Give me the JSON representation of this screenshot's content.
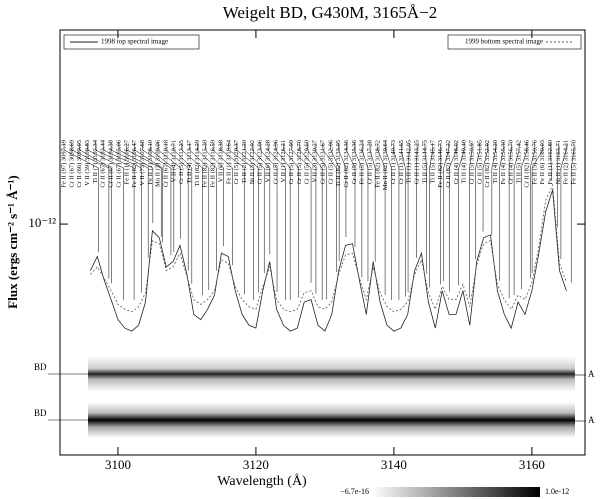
{
  "chart_data": {
    "type": "line",
    "title": "Weigelt BD, G430M, 3165Å−2",
    "xlabel": "Wavelength (Å)",
    "ylabel": "Flux (ergs cm⁻² s⁻¹ Å⁻¹)",
    "log_y": true,
    "xlim": [
      3091.6,
      3167.7
    ],
    "ylim": [
      1.7e-13,
      3.66e-12
    ],
    "xticks": [
      3100,
      3120,
      3140,
      3160
    ],
    "yticks": [
      {
        "value": 1e-12,
        "label": "10⁻¹²"
      }
    ],
    "x": [
      3096,
      3097,
      3098,
      3099,
      3100,
      3101,
      3102,
      3103,
      3104,
      3105,
      3106,
      3107,
      3108,
      3109,
      3110,
      3111,
      3112,
      3113,
      3114,
      3115,
      3116,
      3117,
      3118,
      3119,
      3120,
      3121,
      3122,
      3123,
      3124,
      3125,
      3126,
      3127,
      3128,
      3129,
      3130,
      3131,
      3132,
      3133,
      3134,
      3135,
      3136,
      3137,
      3138,
      3139,
      3140,
      3141,
      3142,
      3143,
      3144,
      3145,
      3146,
      3147,
      3148,
      3149,
      3150,
      3151,
      3152,
      3153,
      3154,
      3155,
      3156,
      3157,
      3158,
      3159,
      3160,
      3161,
      3162,
      3163,
      3164,
      3165
    ],
    "series": [
      {
        "name": "1998 top spectral image",
        "color": "#222222",
        "dash": "none",
        "values": [
          7e-13,
          7.8e-13,
          6.5e-13,
          5.6e-13,
          4.8e-13,
          4.5e-13,
          4.4e-13,
          4.6e-13,
          5.5e-13,
          9.5e-13,
          9e-13,
          7.2e-13,
          7.5e-13,
          8.5e-13,
          6.8e-13,
          5e-13,
          4.8e-13,
          5.2e-13,
          5.8e-13,
          8e-13,
          7.8e-13,
          6e-13,
          5e-13,
          4.6e-13,
          4.5e-13,
          6e-13,
          7.5e-13,
          5.2e-13,
          4.6e-13,
          4.4e-13,
          4.5e-13,
          5.5e-13,
          5.6e-13,
          4.6e-13,
          4.4e-13,
          5e-13,
          7e-13,
          8.5e-13,
          8.6e-13,
          6.5e-13,
          5e-13,
          7.5e-13,
          5.5e-13,
          4.6e-13,
          4.4e-13,
          4.5e-13,
          5e-13,
          7e-13,
          8e-13,
          5.5e-13,
          4.5e-13,
          6e-13,
          5e-13,
          5e-13,
          6e-13,
          4.6e-13,
          7.5e-13,
          9e-13,
          9.2e-13,
          6e-13,
          5e-13,
          4.5e-13,
          5.5e-13,
          5e-13,
          6e-13,
          8e-13,
          1.1e-12,
          1.3e-12,
          7e-13,
          6e-13
        ]
      },
      {
        "name": "1999 bottom spectral image",
        "color": "#555555",
        "dash": "2,2",
        "values": [
          6.8e-13,
          7.2e-13,
          6.6e-13,
          6e-13,
          5.4e-13,
          5.2e-13,
          5.1e-13,
          5.3e-13,
          5.9e-13,
          8.8e-13,
          8.6e-13,
          7e-13,
          7.2e-13,
          8e-13,
          6.7e-13,
          5.6e-13,
          5.4e-13,
          5.6e-13,
          6e-13,
          7.6e-13,
          7.4e-13,
          6.2e-13,
          5.6e-13,
          5.3e-13,
          5.2e-13,
          6.2e-13,
          7.2e-13,
          5.6e-13,
          5.2e-13,
          5.1e-13,
          5.2e-13,
          5.9e-13,
          6e-13,
          5.3e-13,
          5.2e-13,
          5.5e-13,
          6.8e-13,
          7.9e-13,
          8e-13,
          6.6e-13,
          5.6e-13,
          7.2e-13,
          5.9e-13,
          5.3e-13,
          5.1e-13,
          5.2e-13,
          5.5e-13,
          6.8e-13,
          7.6e-13,
          5.9e-13,
          5.2e-13,
          6.2e-13,
          5.6e-13,
          5.6e-13,
          6.3e-13,
          5.3e-13,
          7.3e-13,
          8.6e-13,
          8.8e-13,
          6.3e-13,
          5.6e-13,
          5.2e-13,
          5.8e-13,
          5.6e-13,
          6.4e-13,
          8.4e-13,
          1.2e-12,
          1.35e-12,
          7.4e-13,
          6.4e-13
        ]
      }
    ],
    "legend": "top",
    "line_ids": [
      {
        "label": "Fe II (97) 3097.19",
        "x": 3097.19
      },
      {
        "label": "Cr II (67) 3098.69",
        "x": 3098.69
      },
      {
        "label": "Cr II (66) 3099.05",
        "x": 3099.05
      },
      {
        "label": "V II (39) 3100.83",
        "x": 3100.83
      },
      {
        "label": "Ti II (7) 3102.34",
        "x": 3102.34
      },
      {
        "label": "Cr II (67) 3103.44",
        "x": 3103.44
      },
      {
        "label": "Cr II (67) 3104.38",
        "x": 3104.38
      },
      {
        "label": "Cr II (67) 3105.06",
        "x": 3105.06
      },
      {
        "label": "Fe II (1) 3106.27",
        "x": 3106.27
      },
      {
        "label": "Fe II (82) 3106.47",
        "x": 3106.47
      },
      {
        "label": "V II (73) 3107.68",
        "x": 3107.68
      },
      {
        "label": "Fe II (1) 3108.10",
        "x": 3108.1
      },
      {
        "label": "Mn II (3) 3109.06",
        "x": 3109.06
      },
      {
        "label": "Cr II (67) 3110.18",
        "x": 3110.18
      },
      {
        "label": "V II (4) 3110.71",
        "x": 3110.71
      },
      {
        "label": "Cr II (5) 3112.25",
        "x": 3112.25
      },
      {
        "label": "Ti II (4) 3113.17",
        "x": 3113.17
      },
      {
        "label": "Ti II (82) 3114.29",
        "x": 3114.29
      },
      {
        "label": "Fe II (82) 3115.30",
        "x": 3115.3
      },
      {
        "label": "Fe II (82) 3116.59",
        "x": 3116.59
      },
      {
        "label": "V II (6) 3118.38",
        "x": 3118.38
      },
      {
        "label": "Fe II (1) 3119.64",
        "x": 3119.64
      },
      {
        "label": "Cr II (5) 3120.37",
        "x": 3120.37
      },
      {
        "label": "Ti II (2) 3121.20",
        "x": 3121.2
      },
      {
        "label": "Ni II (3) 3122.02",
        "x": 3122.02
      },
      {
        "label": "Cr II (5) 3123.06",
        "x": 3123.06
      },
      {
        "label": "V II (6) 3124.28",
        "x": 3124.28
      },
      {
        "label": "Cr II (5) 3124.96",
        "x": 3124.96
      },
      {
        "label": "V II (1) 3126.21",
        "x": 3126.21
      },
      {
        "label": "Cr II (5) 3127.99",
        "x": 3127.99
      },
      {
        "label": "Cr II (5) 3128.70",
        "x": 3128.7
      },
      {
        "label": "Cr II (5) 3129.60",
        "x": 3129.6
      },
      {
        "label": "V II (3) 3130.27",
        "x": 3130.27
      },
      {
        "label": "Cr II (5) 3131.67",
        "x": 3131.67
      },
      {
        "label": "Cr II (5) 3132.06",
        "x": 3132.06
      },
      {
        "label": "Ti II (82) 3133.05",
        "x": 3133.05
      },
      {
        "label": "Cr II (82) 3134.36",
        "x": 3134.36
      },
      {
        "label": "Cr II (5) 3135.36",
        "x": 3135.36
      },
      {
        "label": "Fe II (5) 3136.24",
        "x": 3136.24
      },
      {
        "label": "Cr II (5) 3137.28",
        "x": 3137.28
      },
      {
        "label": "Fe II (82) 3138.72",
        "x": 3138.72
      },
      {
        "label": "Mn II (82) 3139.64",
        "x": 3139.64
      },
      {
        "label": "Cr II (1) 3140.73",
        "x": 3140.73
      },
      {
        "label": "Cr II (1) 3141.65",
        "x": 3141.65
      },
      {
        "label": "Ti II (1) 3142.05",
        "x": 3142.05
      },
      {
        "label": "Cr II (1) 3143.25",
        "x": 3143.25
      },
      {
        "label": "Ti II (5) 3144.75",
        "x": 3144.75
      },
      {
        "label": "Ti II (5) 3145.17",
        "x": 3145.17
      },
      {
        "label": "Fe II (82) 3146.73",
        "x": 3146.73
      },
      {
        "label": "Cr II (82) 3147.22",
        "x": 3147.22
      },
      {
        "label": "Cr II (4) 3148.02",
        "x": 3148.02
      },
      {
        "label": "Ti II (4) 3149.40",
        "x": 3149.4
      },
      {
        "label": "Cr II (5) 3150.97",
        "x": 3150.97
      },
      {
        "label": "Cr II (5) 3151.85",
        "x": 3151.85
      },
      {
        "label": "Cr II (82) 3152.92",
        "x": 3152.92
      },
      {
        "label": "Ti II (4) 3154.20",
        "x": 3154.2
      },
      {
        "label": "Fe II (4) 3155.30",
        "x": 3155.3
      },
      {
        "label": "Cr II (4) 3156.70",
        "x": 3156.7
      },
      {
        "label": "Ti II (5) 3157.42",
        "x": 3157.42
      },
      {
        "label": "Cr II (82) 3158.46",
        "x": 3158.46
      },
      {
        "label": "Fe II (5) 3159.76",
        "x": 3159.76
      },
      {
        "label": "Fe II (6) 3160.03",
        "x": 3160.03
      },
      {
        "label": "Fe II (1) 3162.80",
        "x": 3162.8
      },
      {
        "label": "Ni II (1) 3163.71",
        "x": 3163.71
      },
      {
        "label": "Fe II (2) 3164.21",
        "x": 3164.21
      },
      {
        "label": "Fe II (5) 3165.70",
        "x": 3165.7
      }
    ],
    "image_labels": {
      "left": [
        "BD",
        "BD"
      ],
      "right": [
        "A",
        "A"
      ]
    },
    "colorbar": {
      "min_label": "−6.7e-16",
      "max_label": "1.0e-12"
    }
  }
}
